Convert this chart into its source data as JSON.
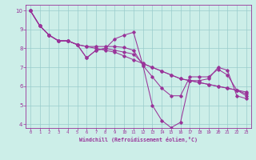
{
  "xlabel": "Windchill (Refroidissement éolien,°C)",
  "bg_color": "#cceee8",
  "line_color": "#993399",
  "grid_color": "#99cccc",
  "axis_label_color": "#993399",
  "tick_color": "#993399",
  "spine_color": "#993399",
  "xlim": [
    -0.5,
    23.5
  ],
  "ylim": [
    3.8,
    10.3
  ],
  "yticks": [
    4,
    5,
    6,
    7,
    8,
    9,
    10
  ],
  "xticks": [
    0,
    1,
    2,
    3,
    4,
    5,
    6,
    7,
    8,
    9,
    10,
    11,
    12,
    13,
    14,
    15,
    16,
    17,
    18,
    19,
    20,
    21,
    22,
    23
  ],
  "series": [
    [
      10.0,
      9.2,
      8.7,
      8.4,
      8.4,
      8.2,
      7.5,
      7.9,
      8.0,
      8.5,
      8.7,
      8.85,
      7.1,
      5.0,
      4.2,
      3.82,
      4.1,
      6.3,
      6.3,
      6.4,
      7.0,
      6.85,
      5.5,
      5.35
    ],
    [
      10.0,
      9.2,
      8.7,
      8.4,
      8.4,
      8.2,
      8.1,
      8.1,
      8.1,
      8.1,
      8.05,
      7.9,
      7.1,
      6.5,
      5.9,
      5.5,
      5.5,
      6.5,
      6.5,
      6.5,
      6.9,
      6.6,
      5.8,
      5.5
    ],
    [
      10.0,
      9.2,
      8.7,
      8.4,
      8.4,
      8.2,
      8.1,
      8.0,
      7.9,
      7.8,
      7.6,
      7.4,
      7.2,
      7.0,
      6.8,
      6.6,
      6.4,
      6.3,
      6.2,
      6.1,
      6.0,
      5.9,
      5.8,
      5.7
    ],
    [
      10.0,
      9.2,
      8.7,
      8.4,
      8.4,
      8.2,
      7.5,
      7.9,
      8.0,
      7.9,
      7.8,
      7.7,
      7.2,
      7.0,
      6.8,
      6.6,
      6.4,
      6.3,
      6.2,
      6.1,
      6.0,
      5.9,
      5.8,
      5.6
    ]
  ]
}
